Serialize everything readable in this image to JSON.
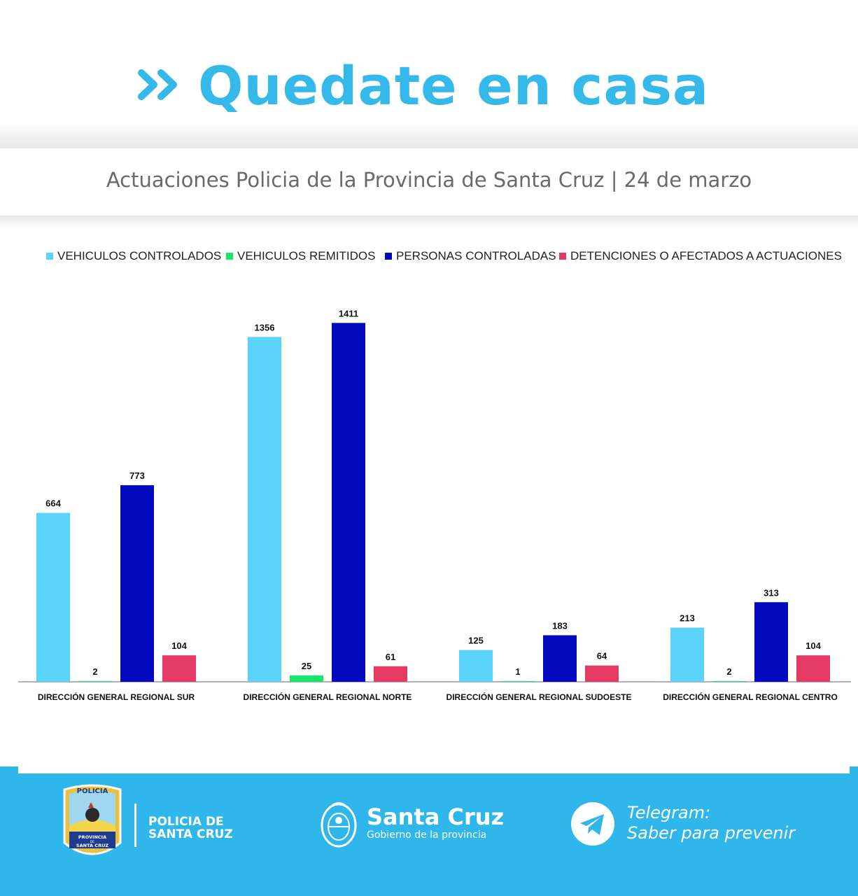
{
  "header": {
    "headline": "Quedate en casa",
    "subtitle": "Actuaciones Policia de la Provincia de Santa Cruz | 24 de marzo"
  },
  "colors": {
    "brand_blue": "#35b8ea",
    "footer_blue": "#2fb6ea"
  },
  "chart_data": {
    "type": "bar",
    "title": "",
    "xlabel": "",
    "ylabel": "",
    "ylim": [
      0,
      1500
    ],
    "grid": false,
    "legend_position": "top",
    "categories": [
      "DIRECCIÓN GENERAL REGIONAL SUR",
      "DIRECCIÓN GENERAL REGIONAL NORTE",
      "DIRECCIÓN GENERAL REGIONAL SUDOESTE",
      "DIRECCIÓN GENERAL REGIONAL CENTRO"
    ],
    "series": [
      {
        "name": "VEHICULOS CONTROLADOS",
        "color": "#5ad4fd",
        "values": [
          664,
          1356,
          125,
          213
        ]
      },
      {
        "name": "VEHICULOS REMITIDOS",
        "color": "#16e76a",
        "values": [
          2,
          25,
          1,
          2
        ]
      },
      {
        "name": "PERSONAS CONTROLADAS",
        "color": "#0309bd",
        "values": [
          773,
          1411,
          183,
          313
        ]
      },
      {
        "name": "DETENCIONES O AFECTADOS A ACTUACIONES",
        "color": "#e43a64",
        "values": [
          104,
          61,
          64,
          104
        ]
      }
    ]
  },
  "footer": {
    "badge_top": "POLICIA",
    "badge_middle": "PROVINCIA",
    "badge_small": "DE",
    "badge_bottom": "SANTA CRUZ",
    "policia_line1": "POLICIA DE",
    "policia_line2": "SANTA CRUZ",
    "gov_name": "Santa Cruz",
    "gov_sub": "Gobierno de la provincia",
    "telegram_line1": "Telegram:",
    "telegram_line2": "Saber para prevenir",
    "icons": [
      "police-badge-icon",
      "province-seal-icon",
      "telegram-icon"
    ]
  }
}
